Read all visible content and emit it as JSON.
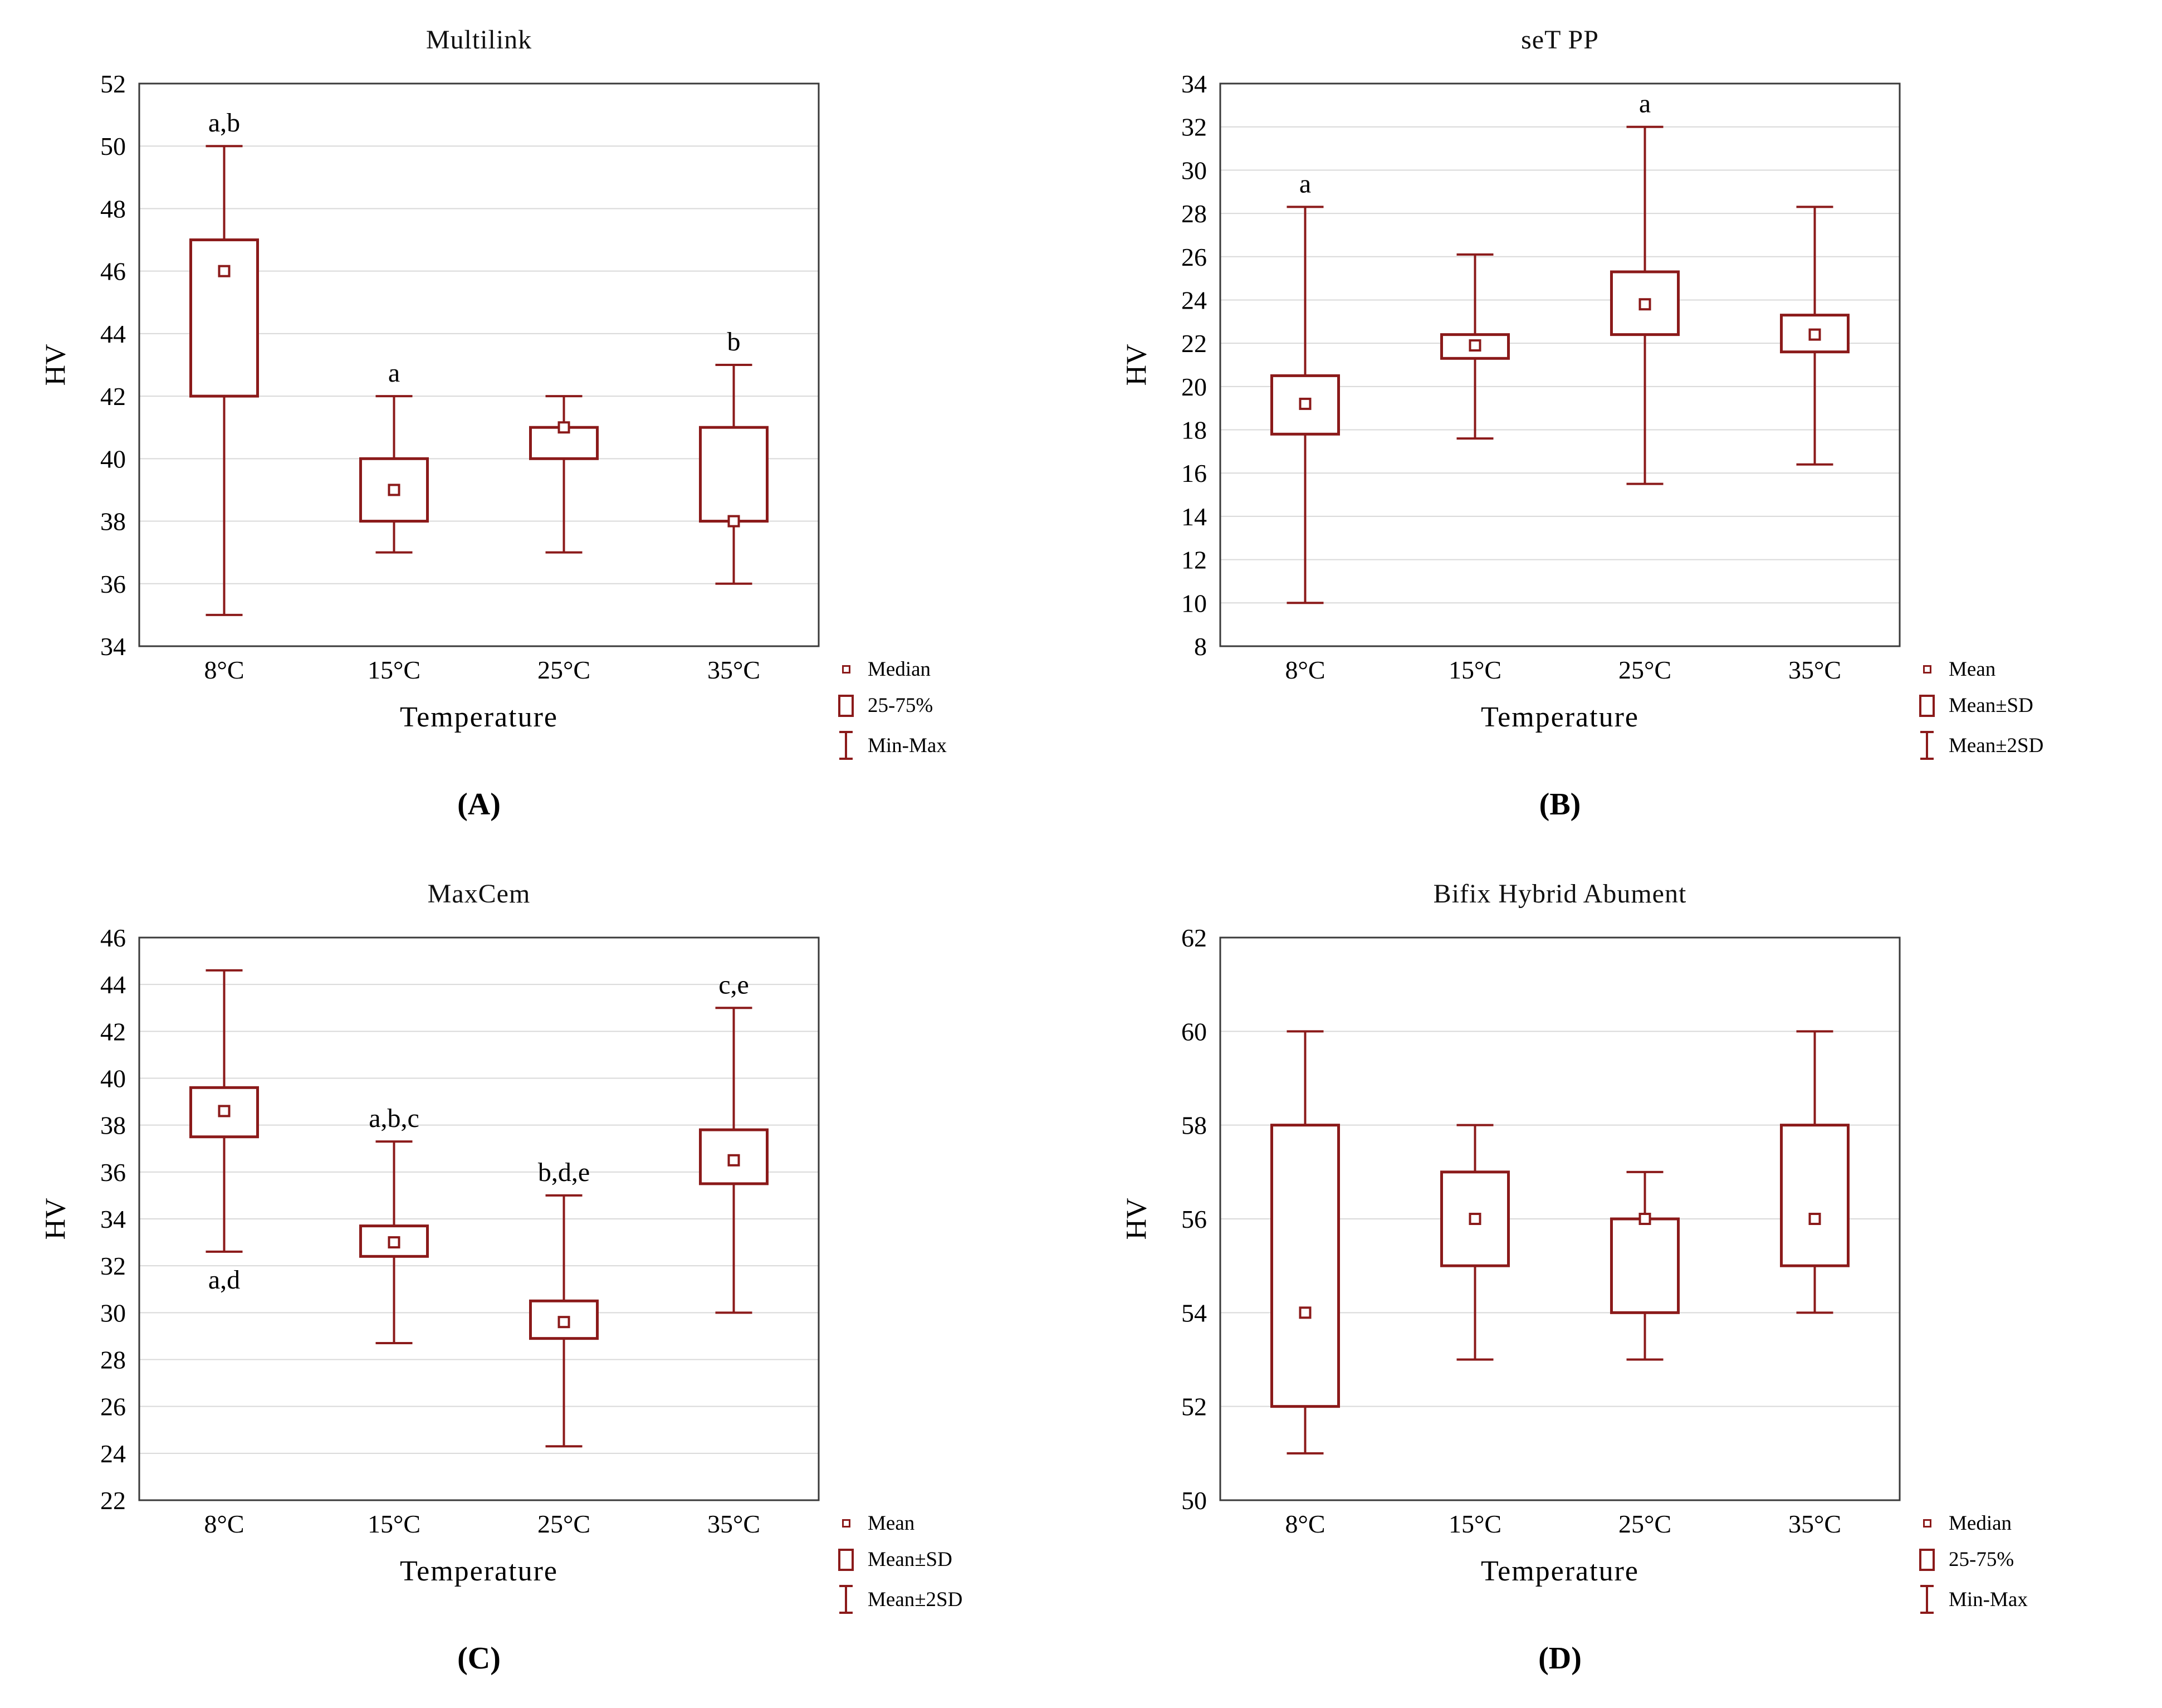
{
  "colors": {
    "box": "#8B1A1A",
    "grid": "#d9d9d9",
    "frame": "#3a3a3a",
    "background": "#ffffff",
    "text": "#000000"
  },
  "chart_data": [
    {
      "type": "box",
      "panel_label": "(A)",
      "title": "Multilink",
      "xlabel": "Temperature",
      "ylabel": "HV",
      "ylim": [
        34,
        52
      ],
      "ytick_step": 2,
      "grid": "horizontal",
      "legend_position": "bottom-right",
      "categories": [
        "8°C",
        "15°C",
        "25°C",
        "35°C"
      ],
      "legend": [
        {
          "marker": "point",
          "label": "Median"
        },
        {
          "marker": "box",
          "label": "25-75%"
        },
        {
          "marker": "whisker",
          "label": "Min-Max"
        }
      ],
      "boxes": [
        {
          "low": 35,
          "q1": 42,
          "mid": 46,
          "q3": 47,
          "high": 50,
          "annotation": "a,b",
          "annotation_pos": "above"
        },
        {
          "low": 37,
          "q1": 38,
          "mid": 39,
          "q3": 40,
          "high": 42,
          "annotation": "a",
          "annotation_pos": "above"
        },
        {
          "low": 37,
          "q1": 40,
          "mid": 41,
          "q3": 41,
          "high": 42
        },
        {
          "low": 36,
          "q1": 38,
          "mid": 38,
          "q3": 41,
          "high": 43,
          "annotation": "b",
          "annotation_pos": "above"
        }
      ]
    },
    {
      "type": "box",
      "panel_label": "(B)",
      "title": "seT PP",
      "xlabel": "Temperature",
      "ylabel": "HV",
      "ylim": [
        8,
        34
      ],
      "ytick_step": 2,
      "grid": "horizontal",
      "legend_position": "bottom-right",
      "categories": [
        "8°C",
        "15°C",
        "25°C",
        "35°C"
      ],
      "legend": [
        {
          "marker": "point",
          "label": "Mean"
        },
        {
          "marker": "box",
          "label": "Mean±SD"
        },
        {
          "marker": "whisker",
          "label": "Mean±2SD"
        }
      ],
      "boxes": [
        {
          "low": 10.0,
          "q1": 17.8,
          "mid": 19.2,
          "q3": 20.5,
          "high": 28.3,
          "annotation": "a",
          "annotation_pos": "above"
        },
        {
          "low": 17.6,
          "q1": 21.3,
          "mid": 21.9,
          "q3": 22.4,
          "high": 26.1
        },
        {
          "low": 15.5,
          "q1": 22.4,
          "mid": 23.8,
          "q3": 25.3,
          "high": 32.0,
          "annotation": "a",
          "annotation_pos": "above"
        },
        {
          "low": 16.4,
          "q1": 21.6,
          "mid": 22.4,
          "q3": 23.3,
          "high": 28.3
        }
      ]
    },
    {
      "type": "box",
      "panel_label": "(C)",
      "title": "MaxCem",
      "xlabel": "Temperature",
      "ylabel": "HV",
      "ylim": [
        22,
        46
      ],
      "ytick_step": 2,
      "grid": "horizontal",
      "legend_position": "bottom-right",
      "categories": [
        "8°C",
        "15°C",
        "25°C",
        "35°C"
      ],
      "legend": [
        {
          "marker": "point",
          "label": "Mean"
        },
        {
          "marker": "box",
          "label": "Mean±SD"
        },
        {
          "marker": "whisker",
          "label": "Mean±2SD"
        }
      ],
      "boxes": [
        {
          "low": 32.6,
          "q1": 37.5,
          "mid": 38.6,
          "q3": 39.6,
          "high": 44.6,
          "annotation": "a,d",
          "annotation_pos": "below"
        },
        {
          "low": 28.7,
          "q1": 32.4,
          "mid": 33.0,
          "q3": 33.7,
          "high": 37.3,
          "annotation": "a,b,c",
          "annotation_pos": "above"
        },
        {
          "low": 24.3,
          "q1": 28.9,
          "mid": 29.6,
          "q3": 30.5,
          "high": 35.0,
          "annotation": "b,d,e",
          "annotation_pos": "above"
        },
        {
          "low": 30.0,
          "q1": 35.5,
          "mid": 36.5,
          "q3": 37.8,
          "high": 43.0,
          "annotation": "c,e",
          "annotation_pos": "above"
        }
      ]
    },
    {
      "type": "box",
      "panel_label": "(D)",
      "title": "Bifix Hybrid Abument",
      "xlabel": "Temperature",
      "ylabel": "HV",
      "ylim": [
        50,
        62
      ],
      "ytick_step": 2,
      "grid": "horizontal",
      "legend_position": "bottom-right",
      "categories": [
        "8°C",
        "15°C",
        "25°C",
        "35°C"
      ],
      "legend": [
        {
          "marker": "point",
          "label": "Median"
        },
        {
          "marker": "box",
          "label": "25-75%"
        },
        {
          "marker": "whisker",
          "label": "Min-Max"
        }
      ],
      "boxes": [
        {
          "low": 51,
          "q1": 52,
          "mid": 54,
          "q3": 58,
          "high": 60
        },
        {
          "low": 53,
          "q1": 55,
          "mid": 56,
          "q3": 57,
          "high": 58
        },
        {
          "low": 53,
          "q1": 54,
          "mid": 56,
          "q3": 56,
          "high": 57
        },
        {
          "low": 54,
          "q1": 55,
          "mid": 56,
          "q3": 58,
          "high": 60
        }
      ]
    }
  ]
}
